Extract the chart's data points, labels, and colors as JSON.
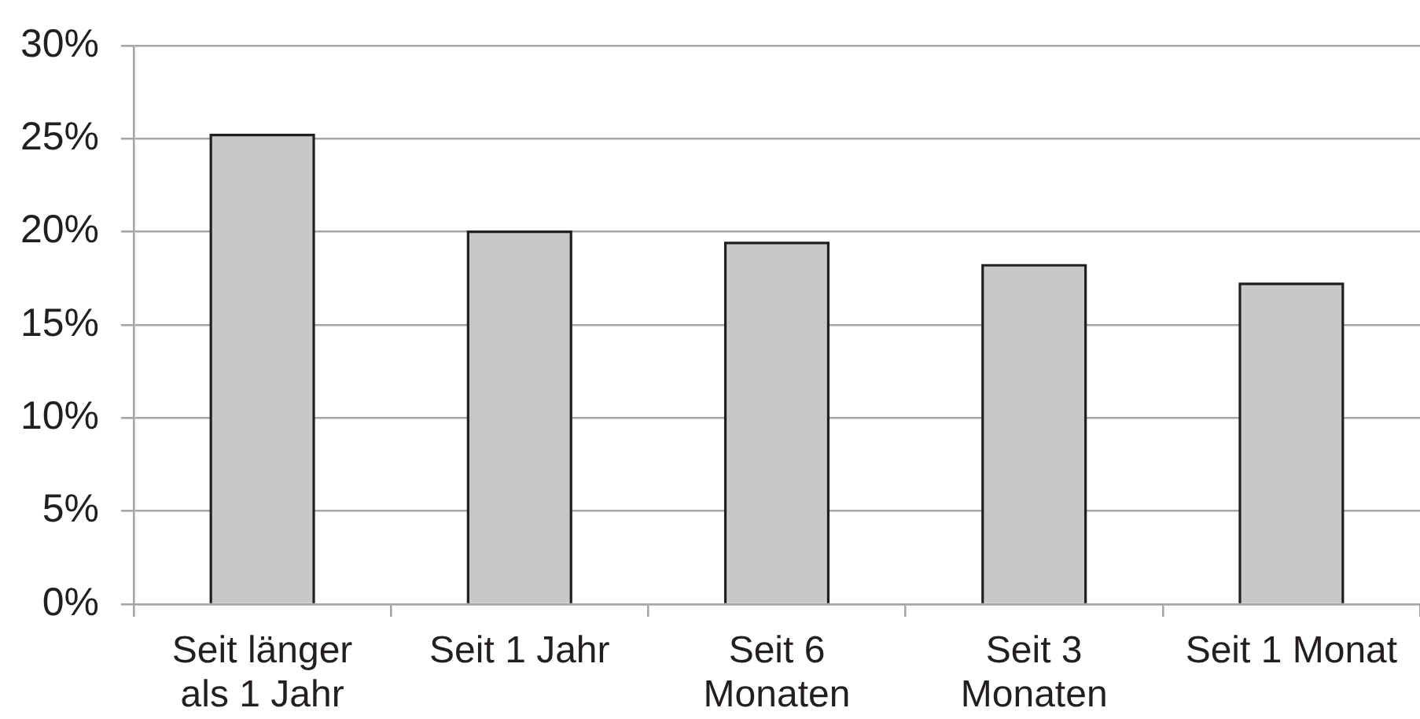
{
  "chart_data": {
    "type": "bar",
    "categories": [
      "Seit länger als 1 Jahr",
      "Seit 1 Jahr",
      "Seit 6 Monaten",
      "Seit 3 Monaten",
      "Seit 1 Monat"
    ],
    "values": [
      25.2,
      20.0,
      19.4,
      18.2,
      17.2
    ],
    "color": "#c7c8ca",
    "ylim": [
      0,
      30
    ],
    "yticks": [
      {
        "value": 0,
        "label": "0%"
      },
      {
        "value": 5,
        "label": "5%"
      },
      {
        "value": 10,
        "label": "10%"
      },
      {
        "value": 15,
        "label": "15%"
      },
      {
        "value": 20,
        "label": "20%"
      },
      {
        "value": 25,
        "label": "25%"
      },
      {
        "value": 30,
        "label": "30%"
      }
    ],
    "grid": "y"
  }
}
